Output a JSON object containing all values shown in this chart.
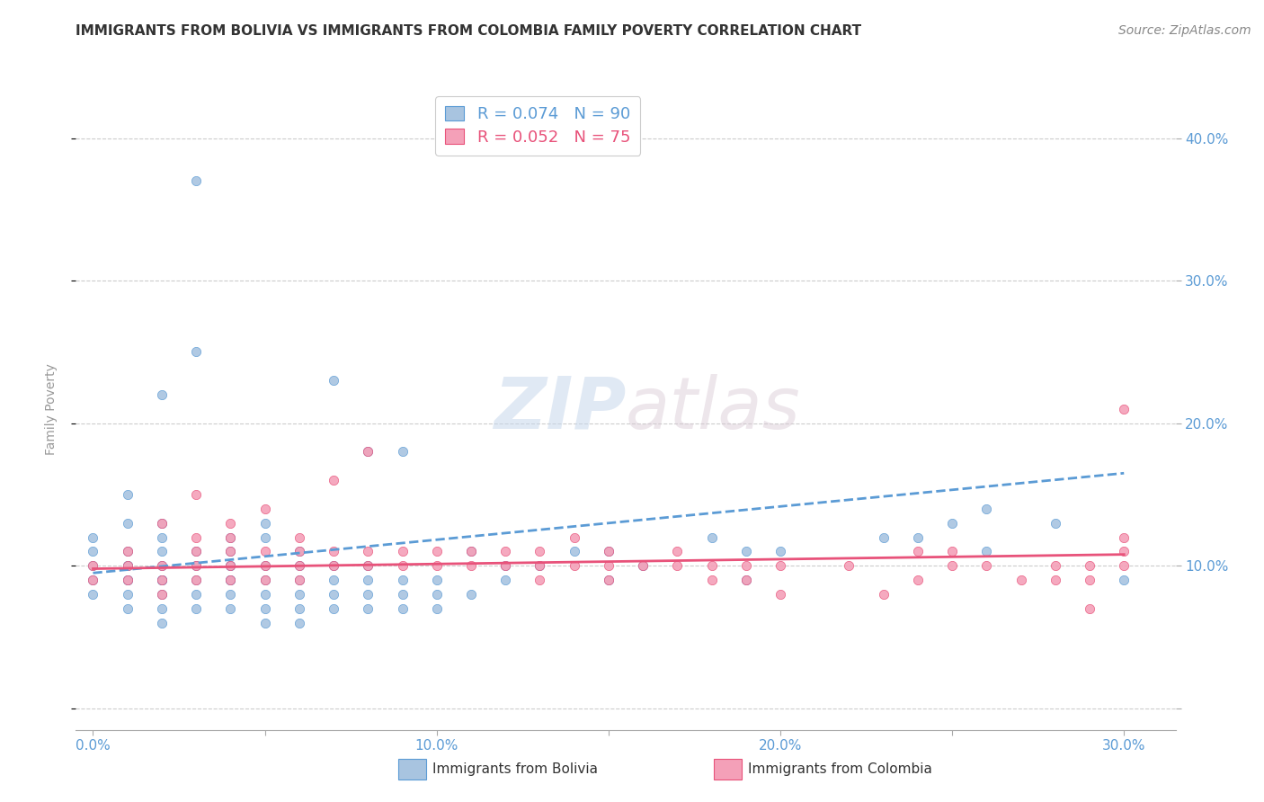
{
  "title": "IMMIGRANTS FROM BOLIVIA VS IMMIGRANTS FROM COLOMBIA FAMILY POVERTY CORRELATION CHART",
  "source": "Source: ZipAtlas.com",
  "ylabel": "Family Poverty",
  "xlabel_ticks": [
    0.0,
    0.05,
    0.1,
    0.15,
    0.2,
    0.25,
    0.3
  ],
  "xlabel_labels": [
    "0.0%",
    "",
    "10.0%",
    "",
    "20.0%",
    "",
    "30.0%"
  ],
  "ytick_positions": [
    0.0,
    0.1,
    0.2,
    0.3,
    0.4
  ],
  "ytick_labels": [
    "",
    "10.0%",
    "20.0%",
    "30.0%",
    "40.0%"
  ],
  "xlim": [
    -0.005,
    0.315
  ],
  "ylim": [
    -0.015,
    0.435
  ],
  "bolivia_color": "#a8c4e0",
  "colombia_color": "#f4a0b8",
  "bolivia_line_color": "#5b9bd5",
  "colombia_line_color": "#e8527a",
  "legend_bolivia_label": "R = 0.074   N = 90",
  "legend_colombia_label": "R = 0.052   N = 75",
  "watermark_zip": "ZIP",
  "watermark_atlas": "atlas",
  "bolivia_scatter_x": [
    0.0,
    0.0,
    0.0,
    0.0,
    0.0,
    0.01,
    0.01,
    0.01,
    0.01,
    0.01,
    0.01,
    0.01,
    0.01,
    0.01,
    0.02,
    0.02,
    0.02,
    0.02,
    0.02,
    0.02,
    0.02,
    0.02,
    0.02,
    0.02,
    0.02,
    0.03,
    0.03,
    0.03,
    0.03,
    0.03,
    0.03,
    0.03,
    0.04,
    0.04,
    0.04,
    0.04,
    0.04,
    0.04,
    0.04,
    0.04,
    0.05,
    0.05,
    0.05,
    0.05,
    0.05,
    0.05,
    0.05,
    0.06,
    0.06,
    0.06,
    0.06,
    0.06,
    0.06,
    0.07,
    0.07,
    0.07,
    0.07,
    0.07,
    0.08,
    0.08,
    0.08,
    0.08,
    0.08,
    0.09,
    0.09,
    0.09,
    0.09,
    0.1,
    0.1,
    0.1,
    0.11,
    0.11,
    0.12,
    0.12,
    0.13,
    0.14,
    0.15,
    0.15,
    0.16,
    0.18,
    0.19,
    0.19,
    0.2,
    0.23,
    0.24,
    0.25,
    0.26,
    0.26,
    0.28,
    0.3
  ],
  "bolivia_scatter_y": [
    0.08,
    0.09,
    0.1,
    0.11,
    0.12,
    0.07,
    0.08,
    0.09,
    0.09,
    0.1,
    0.1,
    0.11,
    0.13,
    0.15,
    0.06,
    0.07,
    0.08,
    0.09,
    0.09,
    0.09,
    0.1,
    0.11,
    0.12,
    0.13,
    0.22,
    0.07,
    0.08,
    0.09,
    0.1,
    0.11,
    0.25,
    0.37,
    0.07,
    0.08,
    0.09,
    0.09,
    0.1,
    0.1,
    0.11,
    0.12,
    0.06,
    0.07,
    0.08,
    0.09,
    0.1,
    0.12,
    0.13,
    0.06,
    0.07,
    0.08,
    0.09,
    0.1,
    0.11,
    0.07,
    0.08,
    0.09,
    0.1,
    0.23,
    0.07,
    0.08,
    0.09,
    0.1,
    0.18,
    0.07,
    0.08,
    0.09,
    0.18,
    0.07,
    0.08,
    0.09,
    0.08,
    0.11,
    0.09,
    0.1,
    0.1,
    0.11,
    0.09,
    0.11,
    0.1,
    0.12,
    0.09,
    0.11,
    0.11,
    0.12,
    0.12,
    0.13,
    0.11,
    0.14,
    0.13,
    0.09
  ],
  "colombia_scatter_x": [
    0.0,
    0.0,
    0.01,
    0.01,
    0.01,
    0.02,
    0.02,
    0.02,
    0.02,
    0.03,
    0.03,
    0.03,
    0.03,
    0.03,
    0.04,
    0.04,
    0.04,
    0.04,
    0.04,
    0.05,
    0.05,
    0.05,
    0.05,
    0.06,
    0.06,
    0.06,
    0.06,
    0.07,
    0.07,
    0.07,
    0.08,
    0.08,
    0.08,
    0.09,
    0.09,
    0.1,
    0.1,
    0.11,
    0.11,
    0.12,
    0.12,
    0.13,
    0.13,
    0.13,
    0.14,
    0.14,
    0.15,
    0.15,
    0.15,
    0.16,
    0.17,
    0.17,
    0.18,
    0.18,
    0.19,
    0.19,
    0.2,
    0.2,
    0.22,
    0.23,
    0.24,
    0.24,
    0.25,
    0.25,
    0.26,
    0.27,
    0.28,
    0.28,
    0.29,
    0.29,
    0.29,
    0.3,
    0.3,
    0.3,
    0.3
  ],
  "colombia_scatter_y": [
    0.09,
    0.1,
    0.09,
    0.1,
    0.11,
    0.08,
    0.09,
    0.1,
    0.13,
    0.09,
    0.1,
    0.11,
    0.12,
    0.15,
    0.09,
    0.1,
    0.11,
    0.12,
    0.13,
    0.09,
    0.1,
    0.11,
    0.14,
    0.09,
    0.1,
    0.11,
    0.12,
    0.1,
    0.11,
    0.16,
    0.1,
    0.11,
    0.18,
    0.1,
    0.11,
    0.1,
    0.11,
    0.1,
    0.11,
    0.1,
    0.11,
    0.09,
    0.1,
    0.11,
    0.1,
    0.12,
    0.09,
    0.1,
    0.11,
    0.1,
    0.1,
    0.11,
    0.09,
    0.1,
    0.09,
    0.1,
    0.08,
    0.1,
    0.1,
    0.08,
    0.09,
    0.11,
    0.1,
    0.11,
    0.1,
    0.09,
    0.09,
    0.1,
    0.07,
    0.09,
    0.1,
    0.1,
    0.11,
    0.12,
    0.21
  ],
  "bolivia_trendline_x": [
    0.0,
    0.3
  ],
  "bolivia_trendline_y": [
    0.095,
    0.165
  ],
  "colombia_trendline_x": [
    0.0,
    0.3
  ],
  "colombia_trendline_y": [
    0.098,
    0.108
  ],
  "grid_color": "#cccccc",
  "title_color": "#333333",
  "tick_color": "#5b9bd5",
  "background_color": "#ffffff"
}
